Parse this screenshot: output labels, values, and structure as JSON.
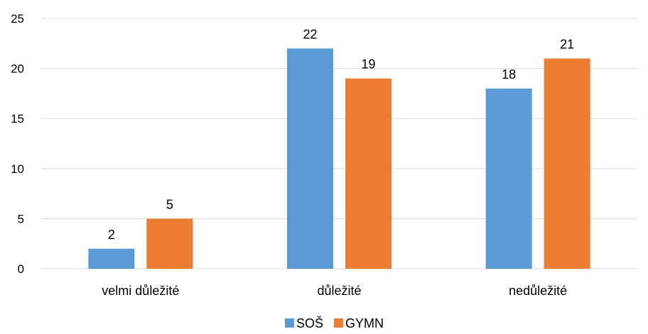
{
  "chart_data": {
    "type": "bar",
    "categories": [
      "velmi důležité",
      "důležité",
      "nedůležité"
    ],
    "series": [
      {
        "name": "SOŠ",
        "values": [
          2,
          22,
          18
        ],
        "color": "#5b9bd5"
      },
      {
        "name": "GYMN",
        "values": [
          5,
          19,
          21
        ],
        "color": "#ed7d31"
      }
    ],
    "yticks": [
      0,
      5,
      10,
      15,
      20,
      25
    ],
    "ylim": [
      0,
      25
    ],
    "grid": true,
    "legend": "bottom",
    "data_labels": true,
    "gridline_color": "#d9d9d9"
  }
}
